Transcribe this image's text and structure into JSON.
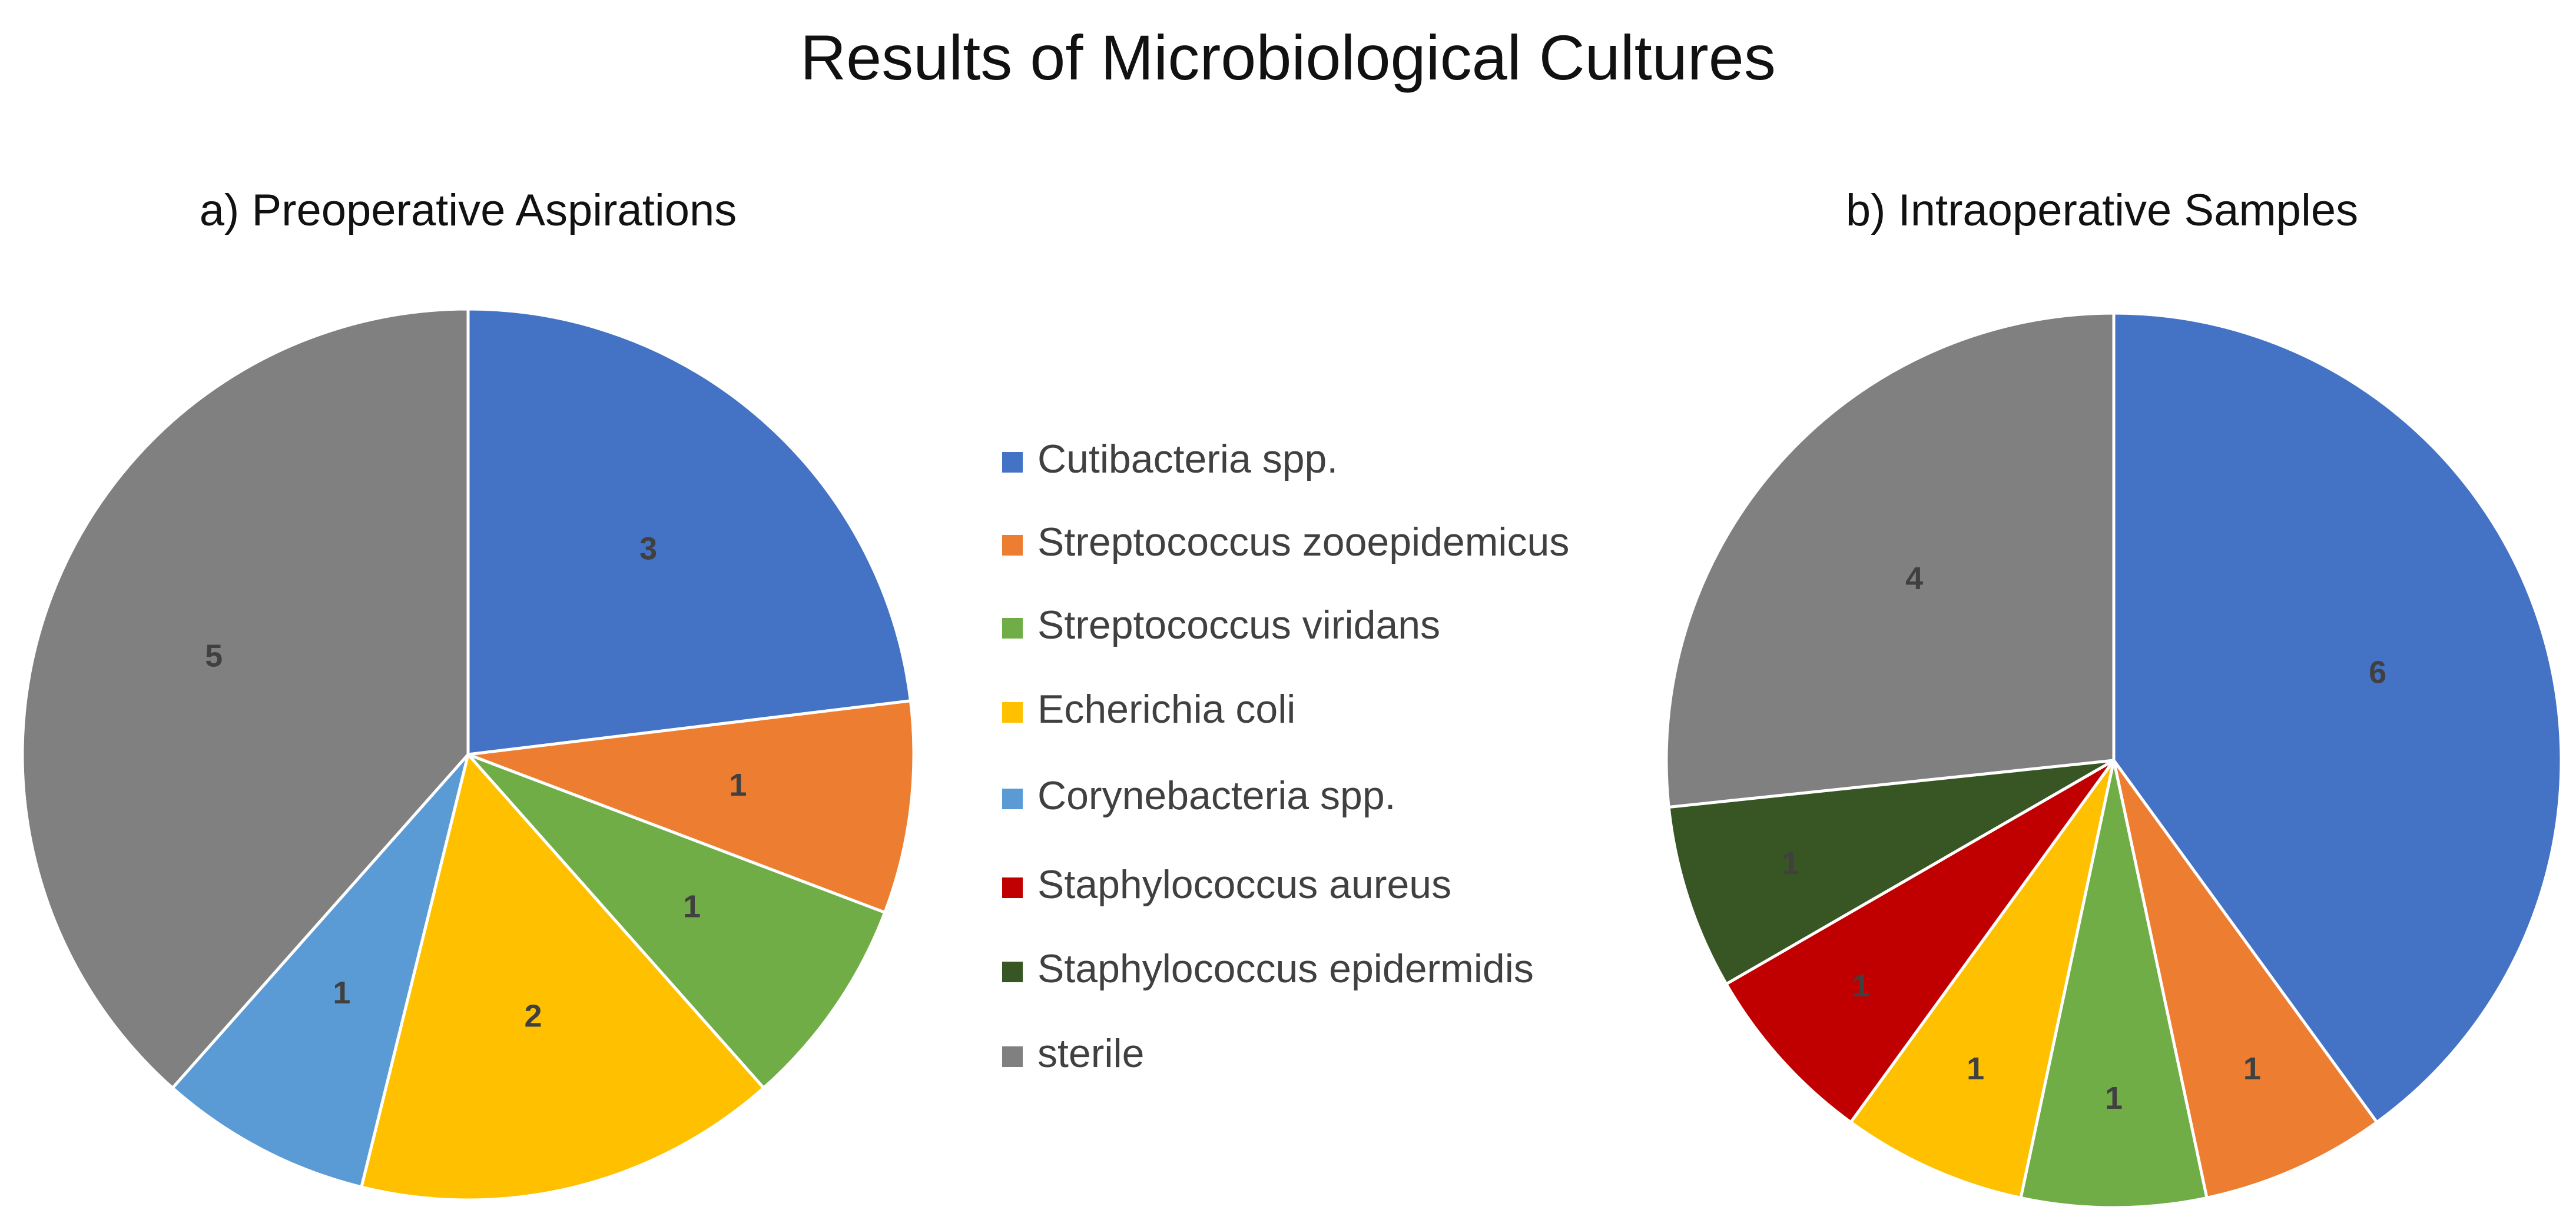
{
  "figure_title": "Results of Microbiological Cultures",
  "legend": [
    {
      "label": "Cutibacteria spp.",
      "color": "#4472C4"
    },
    {
      "label": "Streptococcus zooepidemicus",
      "color": "#ED7D31"
    },
    {
      "label": "Streptococcus viridans",
      "color": "#70AD47"
    },
    {
      "label": "Echerichia coli",
      "color": "#FFC000"
    },
    {
      "label": "Corynebacteria spp.",
      "color": "#5B9BD5"
    },
    {
      "label": "Staphylococcus aureus",
      "color": "#C00000"
    },
    {
      "label": "Staphylococcus epidermidis",
      "color": "#375623"
    },
    {
      "label": "sterile",
      "color": "#808080"
    }
  ],
  "chart_data": [
    {
      "type": "pie",
      "title": "a) Preoperative Aspirations",
      "categories": [
        "Cutibacteria spp.",
        "Streptococcus zooepidemicus",
        "Streptococcus viridans",
        "Echerichia coli",
        "Corynebacteria spp.",
        "sterile"
      ],
      "values": [
        3,
        1,
        1,
        2,
        1,
        5
      ],
      "colors": [
        "#4472C4",
        "#ED7D31",
        "#70AD47",
        "#FFC000",
        "#5B9BD5",
        "#808080"
      ]
    },
    {
      "type": "pie",
      "title": "b) Intraoperative Samples",
      "categories": [
        "Cutibacteria spp.",
        "Streptococcus zooepidemicus",
        "Streptococcus viridans",
        "Echerichia coli",
        "Staphylococcus aureus",
        "Staphylococcus epidermidis",
        "sterile"
      ],
      "values": [
        6,
        1,
        1,
        1,
        1,
        1,
        4
      ],
      "colors": [
        "#4472C4",
        "#ED7D31",
        "#70AD47",
        "#FFC000",
        "#C00000",
        "#375623",
        "#808080"
      ]
    }
  ]
}
